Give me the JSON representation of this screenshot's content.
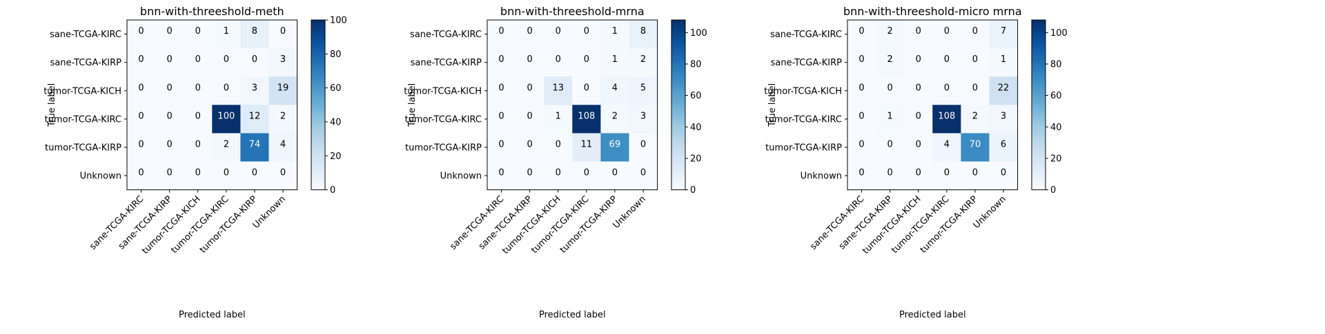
{
  "chart_data": [
    {
      "type": "heatmap",
      "title": "bnn-with-threeshold-meth",
      "xlabel": "Predicted label",
      "ylabel": "True label",
      "x_categories": [
        "sane-TCGA-KIRC",
        "sane-TCGA-KIRP",
        "tumor-TCGA-KICH",
        "tumor-TCGA-KIRC",
        "tumor-TCGA-KIRP",
        "Unknown"
      ],
      "y_categories": [
        "sane-TCGA-KIRC",
        "sane-TCGA-KIRP",
        "tumor-TCGA-KICH",
        "tumor-TCGA-KIRC",
        "tumor-TCGA-KIRP",
        "Unknown"
      ],
      "matrix": [
        [
          0,
          0,
          0,
          1,
          8,
          0
        ],
        [
          0,
          0,
          0,
          0,
          0,
          3
        ],
        [
          0,
          0,
          0,
          0,
          3,
          19
        ],
        [
          0,
          0,
          0,
          100,
          12,
          2
        ],
        [
          0,
          0,
          0,
          2,
          74,
          4
        ],
        [
          0,
          0,
          0,
          0,
          0,
          0
        ]
      ],
      "colorbar": {
        "min": 0,
        "max": 100,
        "ticks": [
          0,
          20,
          40,
          60,
          80,
          100
        ]
      },
      "colormap": "Blues"
    },
    {
      "type": "heatmap",
      "title": "bnn-with-threeshold-mrna",
      "xlabel": "Predicted label",
      "ylabel": "True label",
      "x_categories": [
        "sane-TCGA-KIRC",
        "sane-TCGA-KIRP",
        "tumor-TCGA-KICH",
        "tumor-TCGA-KIRC",
        "tumor-TCGA-KIRP",
        "Unknown"
      ],
      "y_categories": [
        "sane-TCGA-KIRC",
        "sane-TCGA-KIRP",
        "tumor-TCGA-KICH",
        "tumor-TCGA-KIRC",
        "tumor-TCGA-KIRP",
        "Unknown"
      ],
      "matrix": [
        [
          0,
          0,
          0,
          0,
          1,
          8
        ],
        [
          0,
          0,
          0,
          0,
          1,
          2
        ],
        [
          0,
          0,
          13,
          0,
          4,
          5
        ],
        [
          0,
          0,
          1,
          108,
          2,
          3
        ],
        [
          0,
          0,
          0,
          11,
          69,
          0
        ],
        [
          0,
          0,
          0,
          0,
          0,
          0
        ]
      ],
      "colorbar": {
        "min": 0,
        "max": 108,
        "ticks": [
          0,
          20,
          40,
          60,
          80,
          100
        ]
      },
      "colormap": "Blues"
    },
    {
      "type": "heatmap",
      "title": "bnn-with-threeshold-micro mrna",
      "xlabel": "Predicted label",
      "ylabel": "True label",
      "x_categories": [
        "sane-TCGA-KIRC",
        "sane-TCGA-KIRP",
        "tumor-TCGA-KICH",
        "tumor-TCGA-KIRC",
        "tumor-TCGA-KIRP",
        "Unknown"
      ],
      "y_categories": [
        "sane-TCGA-KIRC",
        "sane-TCGA-KIRP",
        "tumor-TCGA-KICH",
        "tumor-TCGA-KIRC",
        "tumor-TCGA-KIRP",
        "Unknown"
      ],
      "matrix": [
        [
          0,
          2,
          0,
          0,
          0,
          7
        ],
        [
          0,
          2,
          0,
          0,
          0,
          1
        ],
        [
          0,
          0,
          0,
          0,
          0,
          22
        ],
        [
          0,
          1,
          0,
          108,
          2,
          3
        ],
        [
          0,
          0,
          0,
          4,
          70,
          6
        ],
        [
          0,
          0,
          0,
          0,
          0,
          0
        ]
      ],
      "colorbar": {
        "min": 0,
        "max": 108,
        "ticks": [
          0,
          20,
          40,
          60,
          80,
          100
        ]
      },
      "colormap": "Blues"
    }
  ]
}
